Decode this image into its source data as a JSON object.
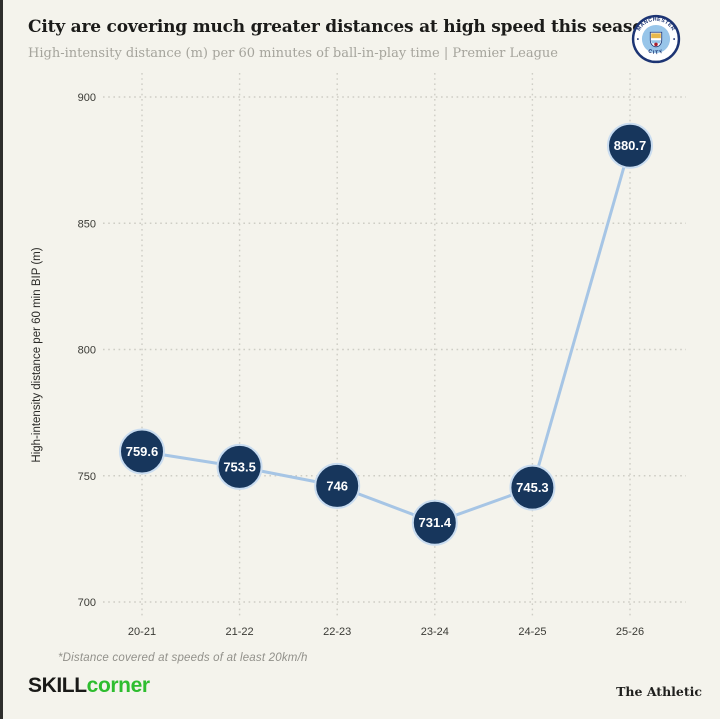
{
  "header": {
    "title": "City are covering much greater distances at high speed this season",
    "subtitle": "High-intensity distance (m) per 60 minutes of ball-in-play time | Premier League",
    "badge": {
      "top_text": "MANCHESTER",
      "bottom_text": "CITY"
    }
  },
  "chart_data": {
    "type": "line",
    "categories": [
      "20-21",
      "21-22",
      "22-23",
      "23-24",
      "24-25",
      "25-26"
    ],
    "values": [
      759.6,
      753.5,
      746,
      731.4,
      745.3,
      880.7
    ],
    "point_labels": [
      "759.6",
      "753.5",
      "746",
      "731.4",
      "745.3",
      "880.7"
    ],
    "title": "City are covering much greater distances at high speed this season",
    "xlabel": "",
    "ylabel": "High-intensity distance per 60 min BIP (m)",
    "ylim": [
      700,
      900
    ],
    "yticks": [
      700,
      750,
      800,
      850,
      900
    ],
    "grid": "dotted",
    "legend": "none",
    "colors": {
      "line": "#a6c5e5",
      "marker_fill": "#17365c",
      "marker_stroke": "#c9dcf0",
      "marker_text": "#ffffff",
      "grid": "#cecdc5",
      "tick_text": "#3b3b36",
      "axis_title_text": "#2a2a27"
    }
  },
  "footnote": "*Distance covered at speeds of at least 20km/h",
  "footer": {
    "brand_skill": "SKILL",
    "brand_corner": "corner",
    "attribution": "The Athletic"
  },
  "colors": {
    "background": "#f4f3ec",
    "title_text": "#1b1b19",
    "subtitle_text": "#a5a49c",
    "brand_green": "#2ebd2f",
    "crest_navy": "#1c3473",
    "crest_sky": "#98c5e9",
    "crest_gold": "#e8b84b",
    "crest_red": "#a91d2c"
  }
}
